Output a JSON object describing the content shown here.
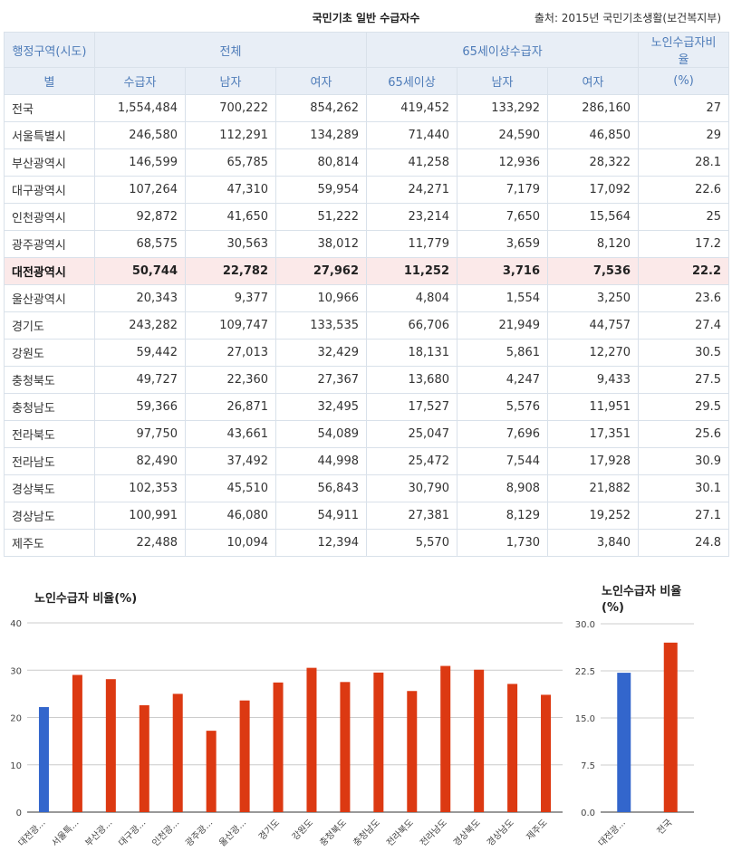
{
  "header": {
    "title": "국민기초 일반 수급자수",
    "source": "출처: 2015년 국민기초생활(보건복지부)"
  },
  "table": {
    "head_top": [
      "행정구역(시도)",
      "전체",
      "65세이상수급자",
      "노인수급자비율"
    ],
    "head_sub": [
      "별",
      "수급자",
      "남자",
      "여자",
      "65세이상",
      "남자",
      "여자",
      "(%)"
    ],
    "rows": [
      [
        "전국",
        "1,554,484",
        "700,222",
        "854,262",
        "419,452",
        "133,292",
        "286,160",
        "27"
      ],
      [
        "서울특별시",
        "246,580",
        "112,291",
        "134,289",
        "71,440",
        "24,590",
        "46,850",
        "29"
      ],
      [
        "부산광역시",
        "146,599",
        "65,785",
        "80,814",
        "41,258",
        "12,936",
        "28,322",
        "28.1"
      ],
      [
        "대구광역시",
        "107,264",
        "47,310",
        "59,954",
        "24,271",
        "7,179",
        "17,092",
        "22.6"
      ],
      [
        "인천광역시",
        "92,872",
        "41,650",
        "51,222",
        "23,214",
        "7,650",
        "15,564",
        "25"
      ],
      [
        "광주광역시",
        "68,575",
        "30,563",
        "38,012",
        "11,779",
        "3,659",
        "8,120",
        "17.2"
      ],
      [
        "대전광역시",
        "50,744",
        "22,782",
        "27,962",
        "11,252",
        "3,716",
        "7,536",
        "22.2"
      ],
      [
        "울산광역시",
        "20,343",
        "9,377",
        "10,966",
        "4,804",
        "1,554",
        "3,250",
        "23.6"
      ],
      [
        "경기도",
        "243,282",
        "109,747",
        "133,535",
        "66,706",
        "21,949",
        "44,757",
        "27.4"
      ],
      [
        "강원도",
        "59,442",
        "27,013",
        "32,429",
        "18,131",
        "5,861",
        "12,270",
        "30.5"
      ],
      [
        "충청북도",
        "49,727",
        "22,360",
        "27,367",
        "13,680",
        "4,247",
        "9,433",
        "27.5"
      ],
      [
        "충청남도",
        "59,366",
        "26,871",
        "32,495",
        "17,527",
        "5,576",
        "11,951",
        "29.5"
      ],
      [
        "전라북도",
        "97,750",
        "43,661",
        "54,089",
        "25,047",
        "7,696",
        "17,351",
        "25.6"
      ],
      [
        "전라남도",
        "82,490",
        "37,492",
        "44,998",
        "25,472",
        "7,544",
        "17,928",
        "30.9"
      ],
      [
        "경상북도",
        "102,353",
        "45,510",
        "56,843",
        "30,790",
        "8,908",
        "21,882",
        "30.1"
      ],
      [
        "경상남도",
        "100,991",
        "46,080",
        "54,911",
        "27,381",
        "8,129",
        "19,252",
        "27.1"
      ],
      [
        "제주도",
        "22,488",
        "10,094",
        "12,394",
        "5,570",
        "1,730",
        "3,840",
        "24.8"
      ]
    ],
    "highlight_row": 6
  },
  "colors": {
    "highlight_bar": "#3366cc",
    "bar": "#dc3912"
  },
  "chart_data": [
    {
      "type": "bar",
      "title": "노인수급자 비율(%)",
      "categories": [
        "대전광...",
        "서울특...",
        "부산광...",
        "대구광...",
        "인천광...",
        "광주광...",
        "울산광...",
        "경기도",
        "강원도",
        "충청북도",
        "충청남도",
        "전라북도",
        "전라남도",
        "경상북도",
        "경상남도",
        "제주도"
      ],
      "values": [
        22.2,
        29,
        28.1,
        22.6,
        25,
        17.2,
        23.6,
        27.4,
        30.5,
        27.5,
        29.5,
        25.6,
        30.9,
        30.1,
        27.1,
        24.8
      ],
      "highlight_index": 0,
      "ylim": [
        0,
        40
      ],
      "ticks": [
        "0",
        "10",
        "20",
        "30",
        "40"
      ],
      "legend": "none"
    },
    {
      "type": "bar",
      "title": "노인수급자 비율(%)",
      "categories": [
        "대전광...",
        "전국"
      ],
      "values": [
        22.2,
        27
      ],
      "highlight_index": 0,
      "ylim": [
        0,
        30
      ],
      "ticks": [
        "0.0",
        "7.5",
        "15.0",
        "22.5",
        "30.0"
      ],
      "legend": "none"
    }
  ]
}
